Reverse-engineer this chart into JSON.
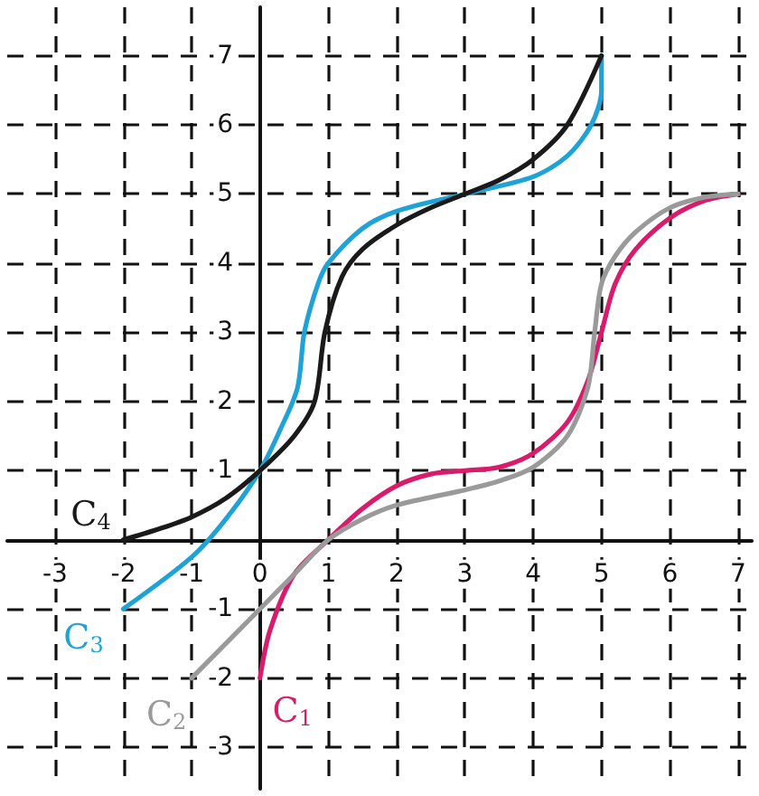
{
  "chart_data": {
    "type": "line",
    "xlim": [
      -3.7,
      7.2
    ],
    "ylim": [
      -3.6,
      7.7
    ],
    "xticks": [
      -3,
      -2,
      -1,
      0,
      1,
      2,
      3,
      4,
      5,
      6,
      7
    ],
    "yticks": [
      -3,
      -2,
      -1,
      {
        "value": 0,
        "label": null
      },
      1,
      2,
      3,
      4,
      5,
      6,
      7
    ],
    "grid": true,
    "marker": "none",
    "line_style": "solid",
    "legend": false,
    "series": [
      {
        "name": "C$_{1}$",
        "color": "#d81b6a",
        "x": [
          0,
          0.15,
          0.5,
          1,
          1.5,
          2,
          2.5,
          3,
          3.5,
          4,
          4.5,
          4.8,
          5,
          5.2,
          5.5,
          6,
          6.5,
          7
        ],
        "values": [
          -2,
          -1.3,
          -0.5,
          0,
          0.45,
          0.78,
          0.95,
          1,
          1.05,
          1.25,
          1.7,
          2.3,
          3,
          3.7,
          4.2,
          4.65,
          4.9,
          5
        ]
      },
      {
        "name": "C$_{2}$",
        "color": "#9a9a9a",
        "x": [
          -1,
          0,
          0.5,
          1,
          1.5,
          2,
          3,
          3.5,
          4,
          4.5,
          4.8,
          4.9,
          5,
          5.2,
          5.5,
          6,
          6.5,
          7
        ],
        "values": [
          -2,
          -1,
          -0.5,
          0,
          0.3,
          0.5,
          0.72,
          0.85,
          1.05,
          1.5,
          2.2,
          3,
          3.7,
          4.1,
          4.45,
          4.8,
          4.95,
          5
        ]
      },
      {
        "name": "C$_{3}$",
        "color": "#1fa3d6",
        "x": [
          -2,
          -1,
          -0.5,
          0,
          0.3,
          0.55,
          0.65,
          0.85,
          1,
          1.5,
          2,
          3,
          4,
          4.5,
          4.85,
          5,
          5
        ],
        "values": [
          -1,
          -0.25,
          0.3,
          1,
          1.6,
          2.2,
          3,
          3.7,
          4,
          4.5,
          4.75,
          5,
          5.25,
          5.55,
          6,
          6.5,
          7
        ]
      },
      {
        "name": "C$_{4}$",
        "color": "#1a1a1a",
        "x": [
          -2,
          -1.5,
          -1,
          -0.5,
          0,
          0.5,
          0.8,
          0.95,
          1.2,
          1.5,
          2,
          2.5,
          3,
          3.5,
          4,
          4.5,
          5
        ],
        "values": [
          0,
          0.15,
          0.33,
          0.6,
          1,
          1.5,
          2,
          3,
          3.8,
          4.2,
          4.55,
          4.8,
          5,
          5.2,
          5.5,
          6,
          7
        ]
      }
    ]
  }
}
